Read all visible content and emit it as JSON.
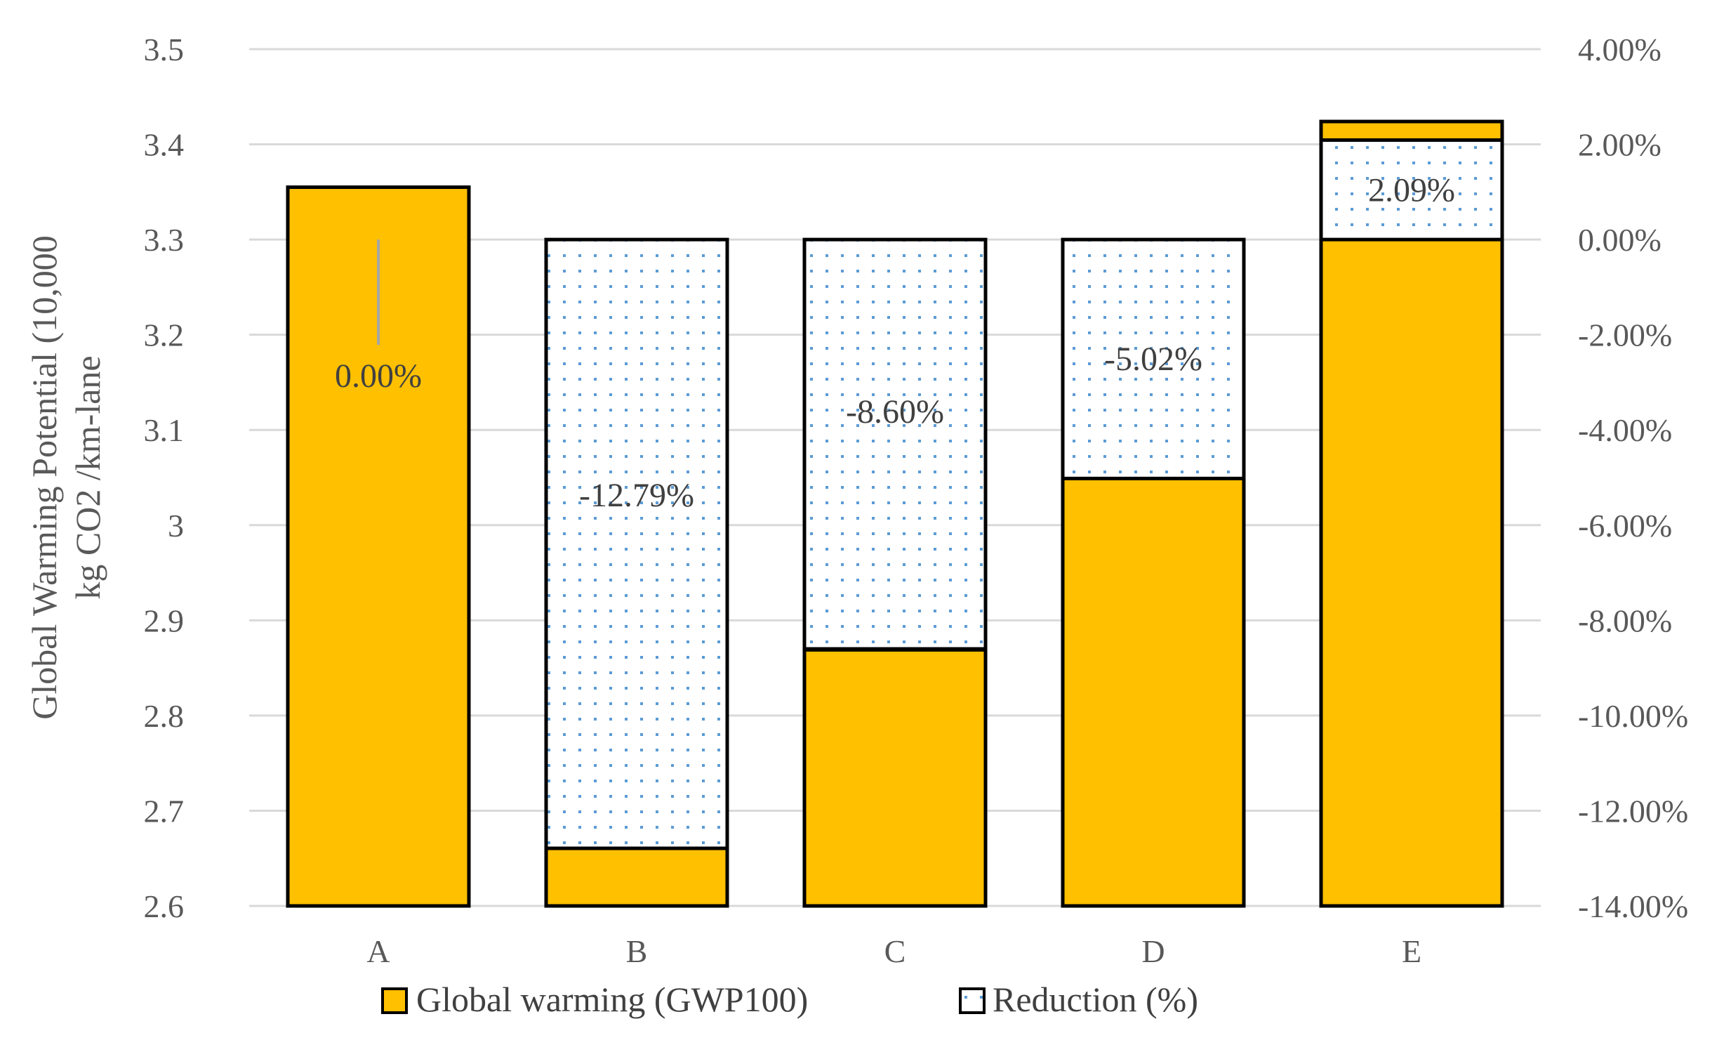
{
  "chart_data": {
    "type": "bar",
    "categories": [
      "A",
      "B",
      "C",
      "D",
      "E"
    ],
    "series": [
      {
        "name": "Global warming (GWP100)",
        "values": [
          3.355,
          2.662,
          2.869,
          3.05,
          3.424
        ],
        "color": "#FFC000"
      },
      {
        "name": "Reduction (%)",
        "values": [
          0.0,
          -12.79,
          -8.6,
          -5.02,
          2.09
        ],
        "labels": [
          "0.00%",
          "-12.79%",
          "-8.60%",
          "-5.02%",
          "2.09%"
        ],
        "dot_color": "#5B9BD5"
      }
    ],
    "ylabel": "Global Warming Potential (10,000 kg CO2 /km-lane",
    "ylim": [
      2.6,
      3.5
    ],
    "y_ticks": [
      "2.6",
      "2.7",
      "2.8",
      "2.9",
      "3",
      "3.1",
      "3.2",
      "3.3",
      "3.4",
      "3.5"
    ],
    "y2lim": [
      -14,
      4
    ],
    "y2_ticks": [
      "-14.00%",
      "-12.00%",
      "-10.00%",
      "-8.00%",
      "-6.00%",
      "-4.00%",
      "-2.00%",
      "0.00%",
      "2.00%",
      "4.00%"
    ],
    "grid": true,
    "legend_position": "bottom"
  }
}
